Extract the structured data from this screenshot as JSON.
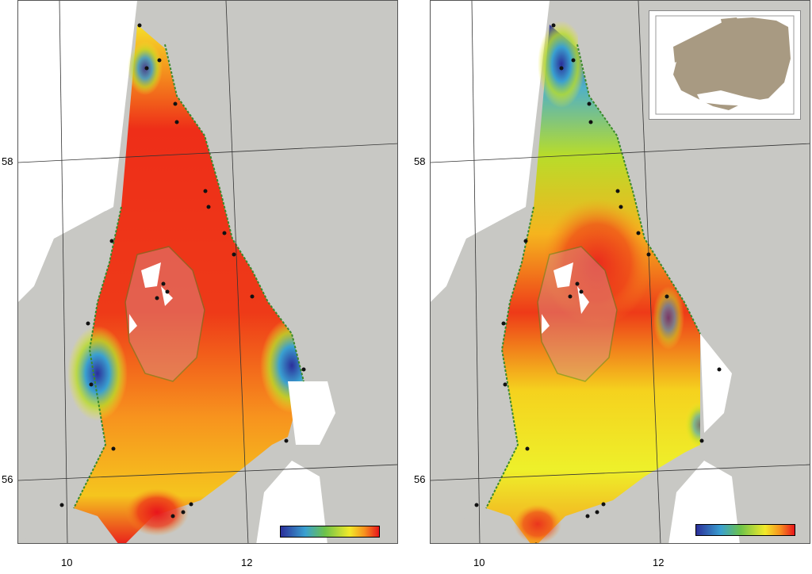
{
  "axes": {
    "y_ticks": [
      "58",
      "56"
    ],
    "x_ticks": [
      "10",
      "12"
    ]
  },
  "colors": {
    "land": "#c8c8c4",
    "sea_unmapped": "#ffffff",
    "coastline": "#3a8a2a",
    "station": "#111111",
    "colorscale": [
      "#2b2f9a",
      "#3aa0d0",
      "#6cc24a",
      "#f2ea2a",
      "#f7931e",
      "#e8151c"
    ]
  },
  "maps": [
    {
      "id": "left",
      "has_inset": false,
      "colorbar_label": ""
    },
    {
      "id": "right",
      "has_inset": true,
      "colorbar_label": ""
    }
  ]
}
